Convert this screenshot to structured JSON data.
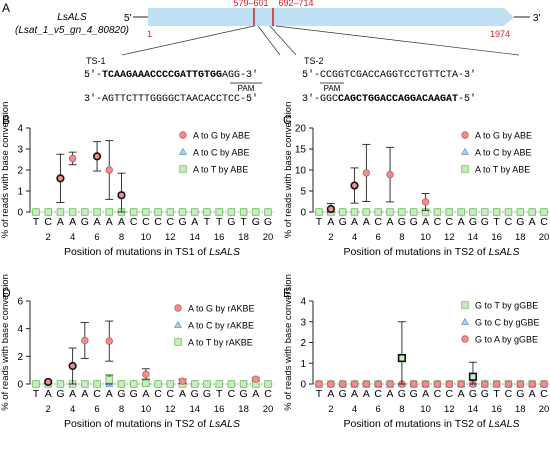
{
  "panel_letters": [
    "A",
    "B",
    "C",
    "D",
    "E"
  ],
  "gene": {
    "name": "LsALS",
    "id": "(Lsat_1_v5_gn_4_80820)",
    "five_prime": "5'",
    "three_prime": "3'",
    "start": "1",
    "end": "1974",
    "range1": "579–601",
    "range2": "692–714",
    "colors": {
      "gene_bar": "#bfe0f2",
      "site_mark": "#d0212a",
      "numbers": "#d0212a"
    }
  },
  "targets": [
    {
      "label": "TS-1",
      "top_prefix": "5'-",
      "top_bold": "TCAAGAAACCCCGATTGTGG",
      "top_rest": "AGG-3'",
      "pam": "PAM",
      "bottom": "3'-AGTTCTTTGGGGCTAACACCTCC-5'"
    },
    {
      "label": "TS-2",
      "top": "5'-CCGGTCGACCAGGTCCTGTTCTA-3'",
      "pam": "PAM",
      "bottom_prefix": "3'-GGC",
      "bottom_bold": "CAGCTGGACCAGGACAAGAT",
      "bottom_rest": "-5'"
    }
  ],
  "colors": {
    "red_fill": "#ee8f8f",
    "red_edge": "#c95a5a",
    "blue_fill": "#a9d0ea",
    "blue_edge": "#6ea2c6",
    "green_fill": "#c8edc0",
    "green_edge": "#6cbf5c",
    "dark_edge": "#111111",
    "axis": "#222222"
  },
  "chart_data": [
    {
      "panel": "B",
      "type": "scatter",
      "ylabel": "% of reads with base conversion",
      "xlabel_prefix": "Position of mutations in TS1 of ",
      "xlabel_gene": "LsALS",
      "ylim": [
        0,
        4
      ],
      "yticks": [
        0,
        1,
        2,
        3,
        4
      ],
      "sequence": "TCAAGAAACCCCGATTGTGG",
      "xticks": [
        2,
        4,
        6,
        8,
        10,
        12,
        14,
        16,
        18,
        20
      ],
      "legend": [
        "A to G by ABE",
        "A to C by ABE",
        "A to T by ABE"
      ],
      "series": [
        {
          "name": "A to G by ABE",
          "marker": "circle",
          "color": "red",
          "points": [
            [
              3,
              1.6,
              1.15,
              true
            ],
            [
              4,
              2.55,
              0.3,
              false
            ],
            [
              6,
              2.65,
              0.7,
              true
            ],
            [
              7,
              2.0,
              1.4,
              false
            ],
            [
              8,
              0.8,
              1.05,
              true
            ]
          ]
        },
        {
          "name": "A to C by ABE",
          "marker": "triangle",
          "color": "blue",
          "points": []
        },
        {
          "name": "A to T by ABE",
          "marker": "square",
          "color": "green",
          "points": []
        }
      ]
    },
    {
      "panel": "C",
      "type": "scatter",
      "ylabel": "% of reads with base conversion",
      "xlabel_prefix": "Position of mutations in TS2 of ",
      "xlabel_gene": "LsALS",
      "ylim": [
        0,
        20
      ],
      "yticks": [
        0,
        5,
        10,
        15,
        20
      ],
      "sequence": "TAGAACAGGACCAGGTCGAC",
      "xticks": [
        2,
        4,
        6,
        8,
        10,
        12,
        14,
        16,
        18,
        20
      ],
      "legend": [
        "A to G by ABE",
        "A to C by ABE",
        "A to T by ABE"
      ],
      "series": [
        {
          "name": "A to G by ABE",
          "marker": "circle",
          "color": "red",
          "points": [
            [
              2,
              0.7,
              1.3,
              true
            ],
            [
              4,
              6.3,
              4.2,
              true
            ],
            [
              5,
              9.3,
              6.8,
              false
            ],
            [
              7,
              8.9,
              6.5,
              false
            ],
            [
              10,
              2.4,
              2.0,
              false
            ]
          ]
        },
        {
          "name": "A to C by ABE",
          "marker": "triangle",
          "color": "blue",
          "points": []
        },
        {
          "name": "A to T by ABE",
          "marker": "square",
          "color": "green",
          "points": []
        }
      ]
    },
    {
      "panel": "D",
      "type": "scatter",
      "ylabel": "% of reads with base conversion",
      "xlabel_prefix": "Position of mutations in TS2 of ",
      "xlabel_gene": "LsALS",
      "ylim": [
        0,
        6
      ],
      "yticks": [
        0,
        2,
        4,
        6
      ],
      "sequence": "TAGAACAGGACCAGGTCGAC",
      "xticks": [
        2,
        4,
        6,
        8,
        10,
        12,
        14,
        16,
        18,
        20
      ],
      "legend": [
        "A to G by rAKBE",
        "A to C by rAKBE",
        "A to T by rAKBE"
      ],
      "series": [
        {
          "name": "A to G by rAKBE",
          "marker": "circle",
          "color": "red",
          "points": [
            [
              2,
              0.15,
              0.1,
              true
            ],
            [
              4,
              1.3,
              1.3,
              true
            ],
            [
              5,
              3.15,
              1.3,
              false
            ],
            [
              7,
              3.1,
              1.45,
              false
            ],
            [
              10,
              0.7,
              0.4,
              false
            ],
            [
              13,
              0.2,
              0.15,
              false
            ],
            [
              19,
              0.35,
              0.1,
              false
            ]
          ]
        },
        {
          "name": "A to C by rAKBE",
          "marker": "triangle",
          "color": "blue",
          "points": []
        },
        {
          "name": "A to T by rAKBE",
          "marker": "square",
          "color": "green",
          "points": [
            [
              7,
              0.3,
              0.35,
              false
            ],
            [
              10,
              0.05,
              0.3,
              false
            ]
          ]
        }
      ]
    },
    {
      "panel": "E",
      "type": "scatter",
      "ylabel": "% of reads with base conversion",
      "xlabel_prefix": "Position of mutations in TS2 of ",
      "xlabel_gene": "LsALS",
      "ylim": [
        0,
        4
      ],
      "yticks": [
        0,
        1,
        2,
        3,
        4
      ],
      "sequence": "TAGAACAGGACCAGGTCGAC",
      "xticks": [
        2,
        4,
        6,
        8,
        10,
        12,
        14,
        16,
        18,
        20
      ],
      "legend": [
        "G to T by gGBE",
        "G to C by gGBE",
        "G to A by gGBE"
      ],
      "series": [
        {
          "name": "G to T by gGBE",
          "marker": "square",
          "color": "green",
          "points": [
            [
              8,
              1.25,
              1.75,
              true
            ],
            [
              14,
              0.35,
              0.7,
              true
            ]
          ]
        },
        {
          "name": "G to C by gGBE",
          "marker": "triangle",
          "color": "blue",
          "points": []
        },
        {
          "name": "G to A by gGBE",
          "marker": "circle",
          "color": "red",
          "points": []
        }
      ]
    }
  ]
}
